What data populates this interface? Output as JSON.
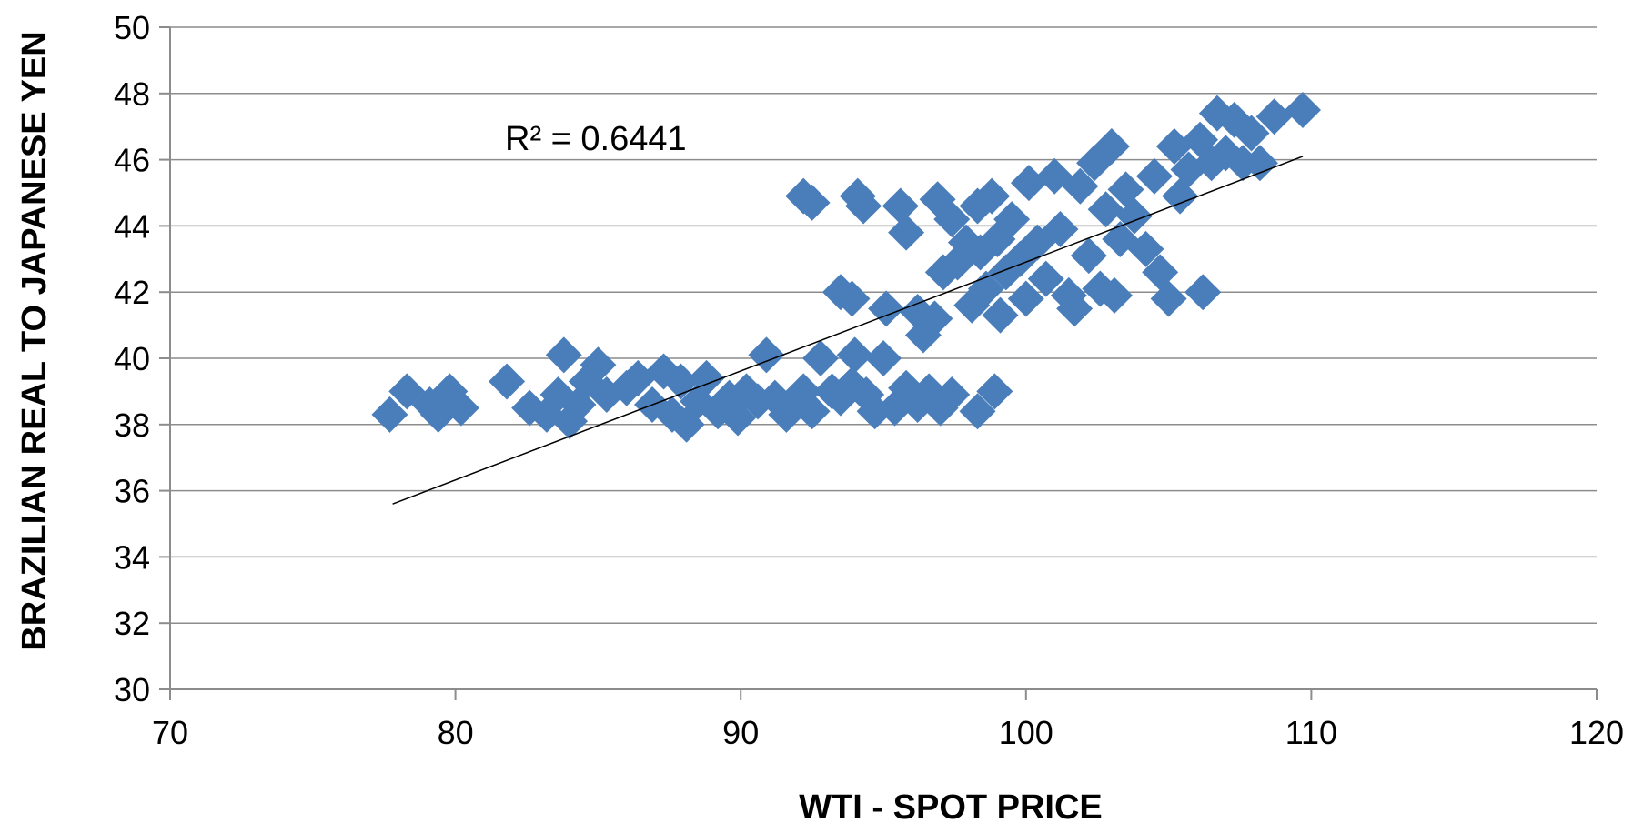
{
  "chart_data": {
    "type": "scatter",
    "xlabel": "WTI - SPOT PRICE",
    "ylabel": "BRAZILIAN REAL TO JAPANESE YEN",
    "xlim": [
      70,
      120
    ],
    "ylim": [
      30,
      50
    ],
    "xticks": [
      70,
      80,
      90,
      100,
      110,
      120
    ],
    "yticks": [
      30,
      32,
      34,
      36,
      38,
      40,
      42,
      44,
      46,
      48,
      50
    ],
    "xtick_labels": [
      "70",
      "80",
      "90",
      "100",
      "110",
      "120"
    ],
    "ytick_labels": [
      "30",
      "32",
      "34",
      "36",
      "38",
      "40",
      "42",
      "44",
      "46",
      "48",
      "50"
    ],
    "grid": "horizontal",
    "marker": "diamond",
    "color": "#4a7ebb",
    "annotation": "R² = 0.6441",
    "trendline": {
      "x": [
        77.8,
        109.7
      ],
      "y": [
        35.6,
        46.1
      ]
    },
    "points": [
      [
        77.7,
        38.3
      ],
      [
        78.3,
        39.0
      ],
      [
        79.1,
        38.6
      ],
      [
        79.4,
        38.3
      ],
      [
        79.8,
        39.0
      ],
      [
        80.2,
        38.5
      ],
      [
        81.8,
        39.3
      ],
      [
        82.6,
        38.5
      ],
      [
        83.2,
        38.3
      ],
      [
        83.6,
        38.9
      ],
      [
        83.8,
        40.1
      ],
      [
        84.0,
        38.1
      ],
      [
        84.3,
        38.6
      ],
      [
        84.6,
        39.3
      ],
      [
        85.0,
        39.8
      ],
      [
        85.3,
        38.9
      ],
      [
        86.0,
        39.1
      ],
      [
        86.4,
        39.4
      ],
      [
        86.9,
        38.6
      ],
      [
        87.3,
        39.6
      ],
      [
        87.6,
        38.3
      ],
      [
        87.9,
        39.3
      ],
      [
        88.1,
        38.0
      ],
      [
        88.5,
        38.7
      ],
      [
        88.8,
        39.4
      ],
      [
        89.2,
        38.4
      ],
      [
        89.6,
        38.8
      ],
      [
        89.9,
        38.2
      ],
      [
        90.2,
        39.0
      ],
      [
        90.6,
        38.7
      ],
      [
        90.9,
        40.1
      ],
      [
        91.2,
        38.8
      ],
      [
        91.6,
        38.3
      ],
      [
        91.9,
        38.6
      ],
      [
        92.2,
        39.0
      ],
      [
        92.5,
        38.4
      ],
      [
        92.8,
        40.0
      ],
      [
        93.2,
        39.0
      ],
      [
        93.5,
        38.8
      ],
      [
        93.9,
        39.2
      ],
      [
        94.0,
        40.1
      ],
      [
        94.4,
        38.9
      ],
      [
        94.7,
        38.4
      ],
      [
        95.0,
        40.0
      ],
      [
        95.4,
        38.5
      ],
      [
        95.8,
        39.1
      ],
      [
        96.2,
        38.6
      ],
      [
        96.6,
        39.0
      ],
      [
        97.0,
        38.5
      ],
      [
        97.4,
        38.9
      ],
      [
        98.3,
        38.4
      ],
      [
        98.9,
        39.0
      ],
      [
        92.2,
        44.9
      ],
      [
        92.5,
        44.7
      ],
      [
        93.5,
        42.0
      ],
      [
        93.9,
        41.8
      ],
      [
        94.1,
        44.9
      ],
      [
        94.3,
        44.6
      ],
      [
        95.1,
        41.5
      ],
      [
        95.6,
        44.6
      ],
      [
        95.8,
        43.8
      ],
      [
        96.2,
        41.4
      ],
      [
        96.4,
        40.7
      ],
      [
        96.8,
        41.2
      ],
      [
        96.9,
        44.8
      ],
      [
        97.1,
        42.6
      ],
      [
        97.4,
        44.2
      ],
      [
        97.6,
        42.9
      ],
      [
        97.9,
        43.5
      ],
      [
        98.1,
        41.6
      ],
      [
        98.3,
        44.6
      ],
      [
        98.4,
        43.2
      ],
      [
        98.6,
        42.1
      ],
      [
        98.8,
        44.9
      ],
      [
        99.0,
        43.6
      ],
      [
        99.1,
        41.3
      ],
      [
        99.3,
        42.6
      ],
      [
        99.5,
        44.2
      ],
      [
        99.8,
        43.0
      ],
      [
        100.0,
        41.8
      ],
      [
        100.1,
        45.3
      ],
      [
        100.4,
        43.5
      ],
      [
        100.7,
        42.4
      ],
      [
        101.0,
        45.5
      ],
      [
        101.2,
        43.9
      ],
      [
        101.5,
        41.9
      ],
      [
        101.7,
        41.5
      ],
      [
        101.9,
        45.2
      ],
      [
        102.2,
        43.1
      ],
      [
        102.4,
        45.9
      ],
      [
        102.6,
        42.1
      ],
      [
        102.8,
        44.5
      ],
      [
        103.0,
        46.4
      ],
      [
        103.1,
        41.9
      ],
      [
        103.3,
        43.6
      ],
      [
        103.5,
        45.1
      ],
      [
        103.8,
        44.3
      ],
      [
        104.2,
        43.3
      ],
      [
        104.5,
        45.5
      ],
      [
        104.7,
        42.6
      ],
      [
        105.0,
        41.8
      ],
      [
        105.2,
        46.4
      ],
      [
        105.4,
        44.9
      ],
      [
        105.7,
        45.7
      ],
      [
        106.1,
        46.6
      ],
      [
        106.2,
        42.0
      ],
      [
        106.5,
        45.9
      ],
      [
        106.7,
        47.4
      ],
      [
        107.0,
        46.2
      ],
      [
        107.3,
        47.2
      ],
      [
        107.6,
        45.9
      ],
      [
        107.9,
        46.8
      ],
      [
        108.2,
        45.9
      ],
      [
        108.7,
        47.3
      ],
      [
        109.7,
        47.5
      ]
    ]
  }
}
